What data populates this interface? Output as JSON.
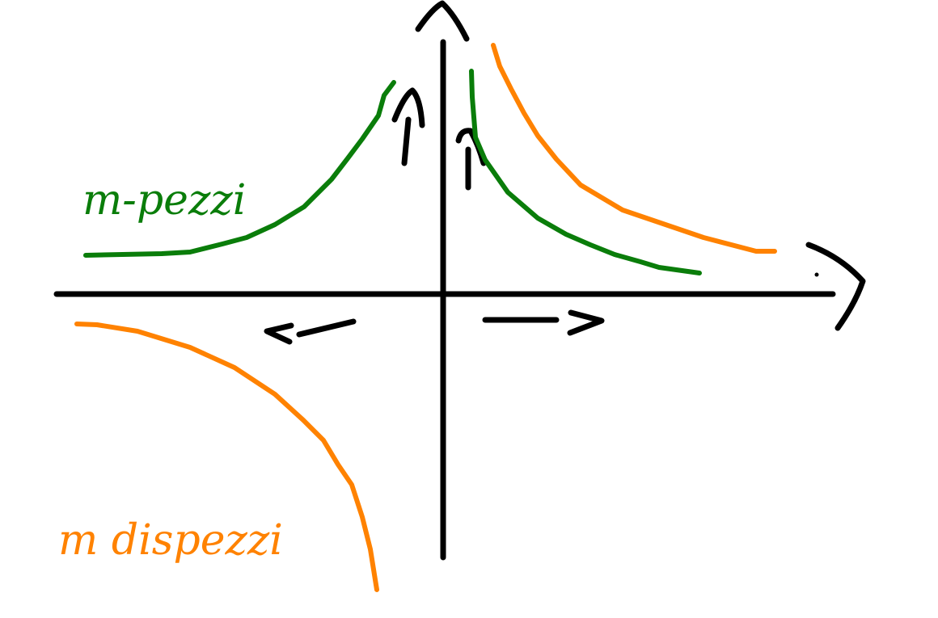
{
  "labels": {
    "green_curve_label": "m-pezzi",
    "orange_curve_label": "m dispezzi"
  },
  "colors": {
    "axes": "#000000",
    "green_curve": "#0a7d0a",
    "orange_curve": "#ff8200",
    "background": "#ffffff"
  }
}
